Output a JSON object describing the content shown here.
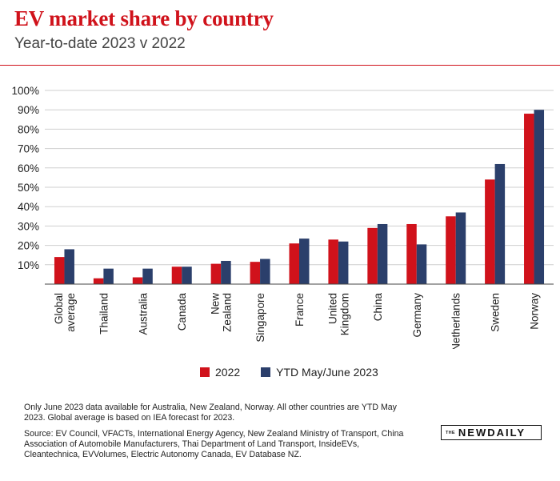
{
  "header": {
    "title": "EV market share by country",
    "subtitle": "Year-to-date 2023 v 2022"
  },
  "chart_data": {
    "type": "bar",
    "title": "EV market share by country",
    "subtitle": "Year-to-date 2023 v 2022",
    "xlabel": "",
    "ylabel": "",
    "ylim": [
      0,
      100
    ],
    "yticks": [
      10,
      20,
      30,
      40,
      50,
      60,
      70,
      80,
      90,
      100
    ],
    "ytick_labels": [
      "10%",
      "20%",
      "30%",
      "40%",
      "50%",
      "60%",
      "70%",
      "80%",
      "90%",
      "100%"
    ],
    "grid": true,
    "legend_position": "bottom-center",
    "categories": [
      [
        "Global",
        "average"
      ],
      [
        "Thailand"
      ],
      [
        "Australia"
      ],
      [
        "Canada"
      ],
      [
        "New",
        "Zealand"
      ],
      [
        "Singapore"
      ],
      [
        "France"
      ],
      [
        "United",
        "Kingdom"
      ],
      [
        "China"
      ],
      [
        "Germany"
      ],
      [
        "Netherlands"
      ],
      [
        "Sweden"
      ],
      [
        "Norway"
      ]
    ],
    "series": [
      {
        "name": "2022",
        "color": "#d0121b",
        "values": [
          14,
          3,
          3.5,
          9,
          10.5,
          11.5,
          21,
          23,
          29,
          31,
          35,
          54,
          88
        ]
      },
      {
        "name": "YTD May/June 2023",
        "color": "#2b3f6b",
        "values": [
          18,
          8,
          8,
          9,
          12,
          13,
          23.5,
          22,
          31,
          20.5,
          37,
          62,
          90
        ]
      }
    ]
  },
  "legend": {
    "items": [
      {
        "label": "2022",
        "color": "#d0121b"
      },
      {
        "label": "YTD May/June 2023",
        "color": "#2b3f6b"
      }
    ]
  },
  "footer": {
    "note": "Only June 2023 data available for Australia, New Zealand, Norway. All other countries are YTD May 2023. Global average is based on IEA forecast for 2023.",
    "source": "Source: EV Council, VFACTs, International Energy Agency, New Zealand Ministry of Transport, China Association of Automobile Manufacturers, Thai Department of Land Transport, InsideEVs, Cleantechnica, EVVolumes, Electric Autonomy Canada, EV Database NZ.",
    "logo_the": "THE",
    "logo_word": "NEWDAILY"
  }
}
